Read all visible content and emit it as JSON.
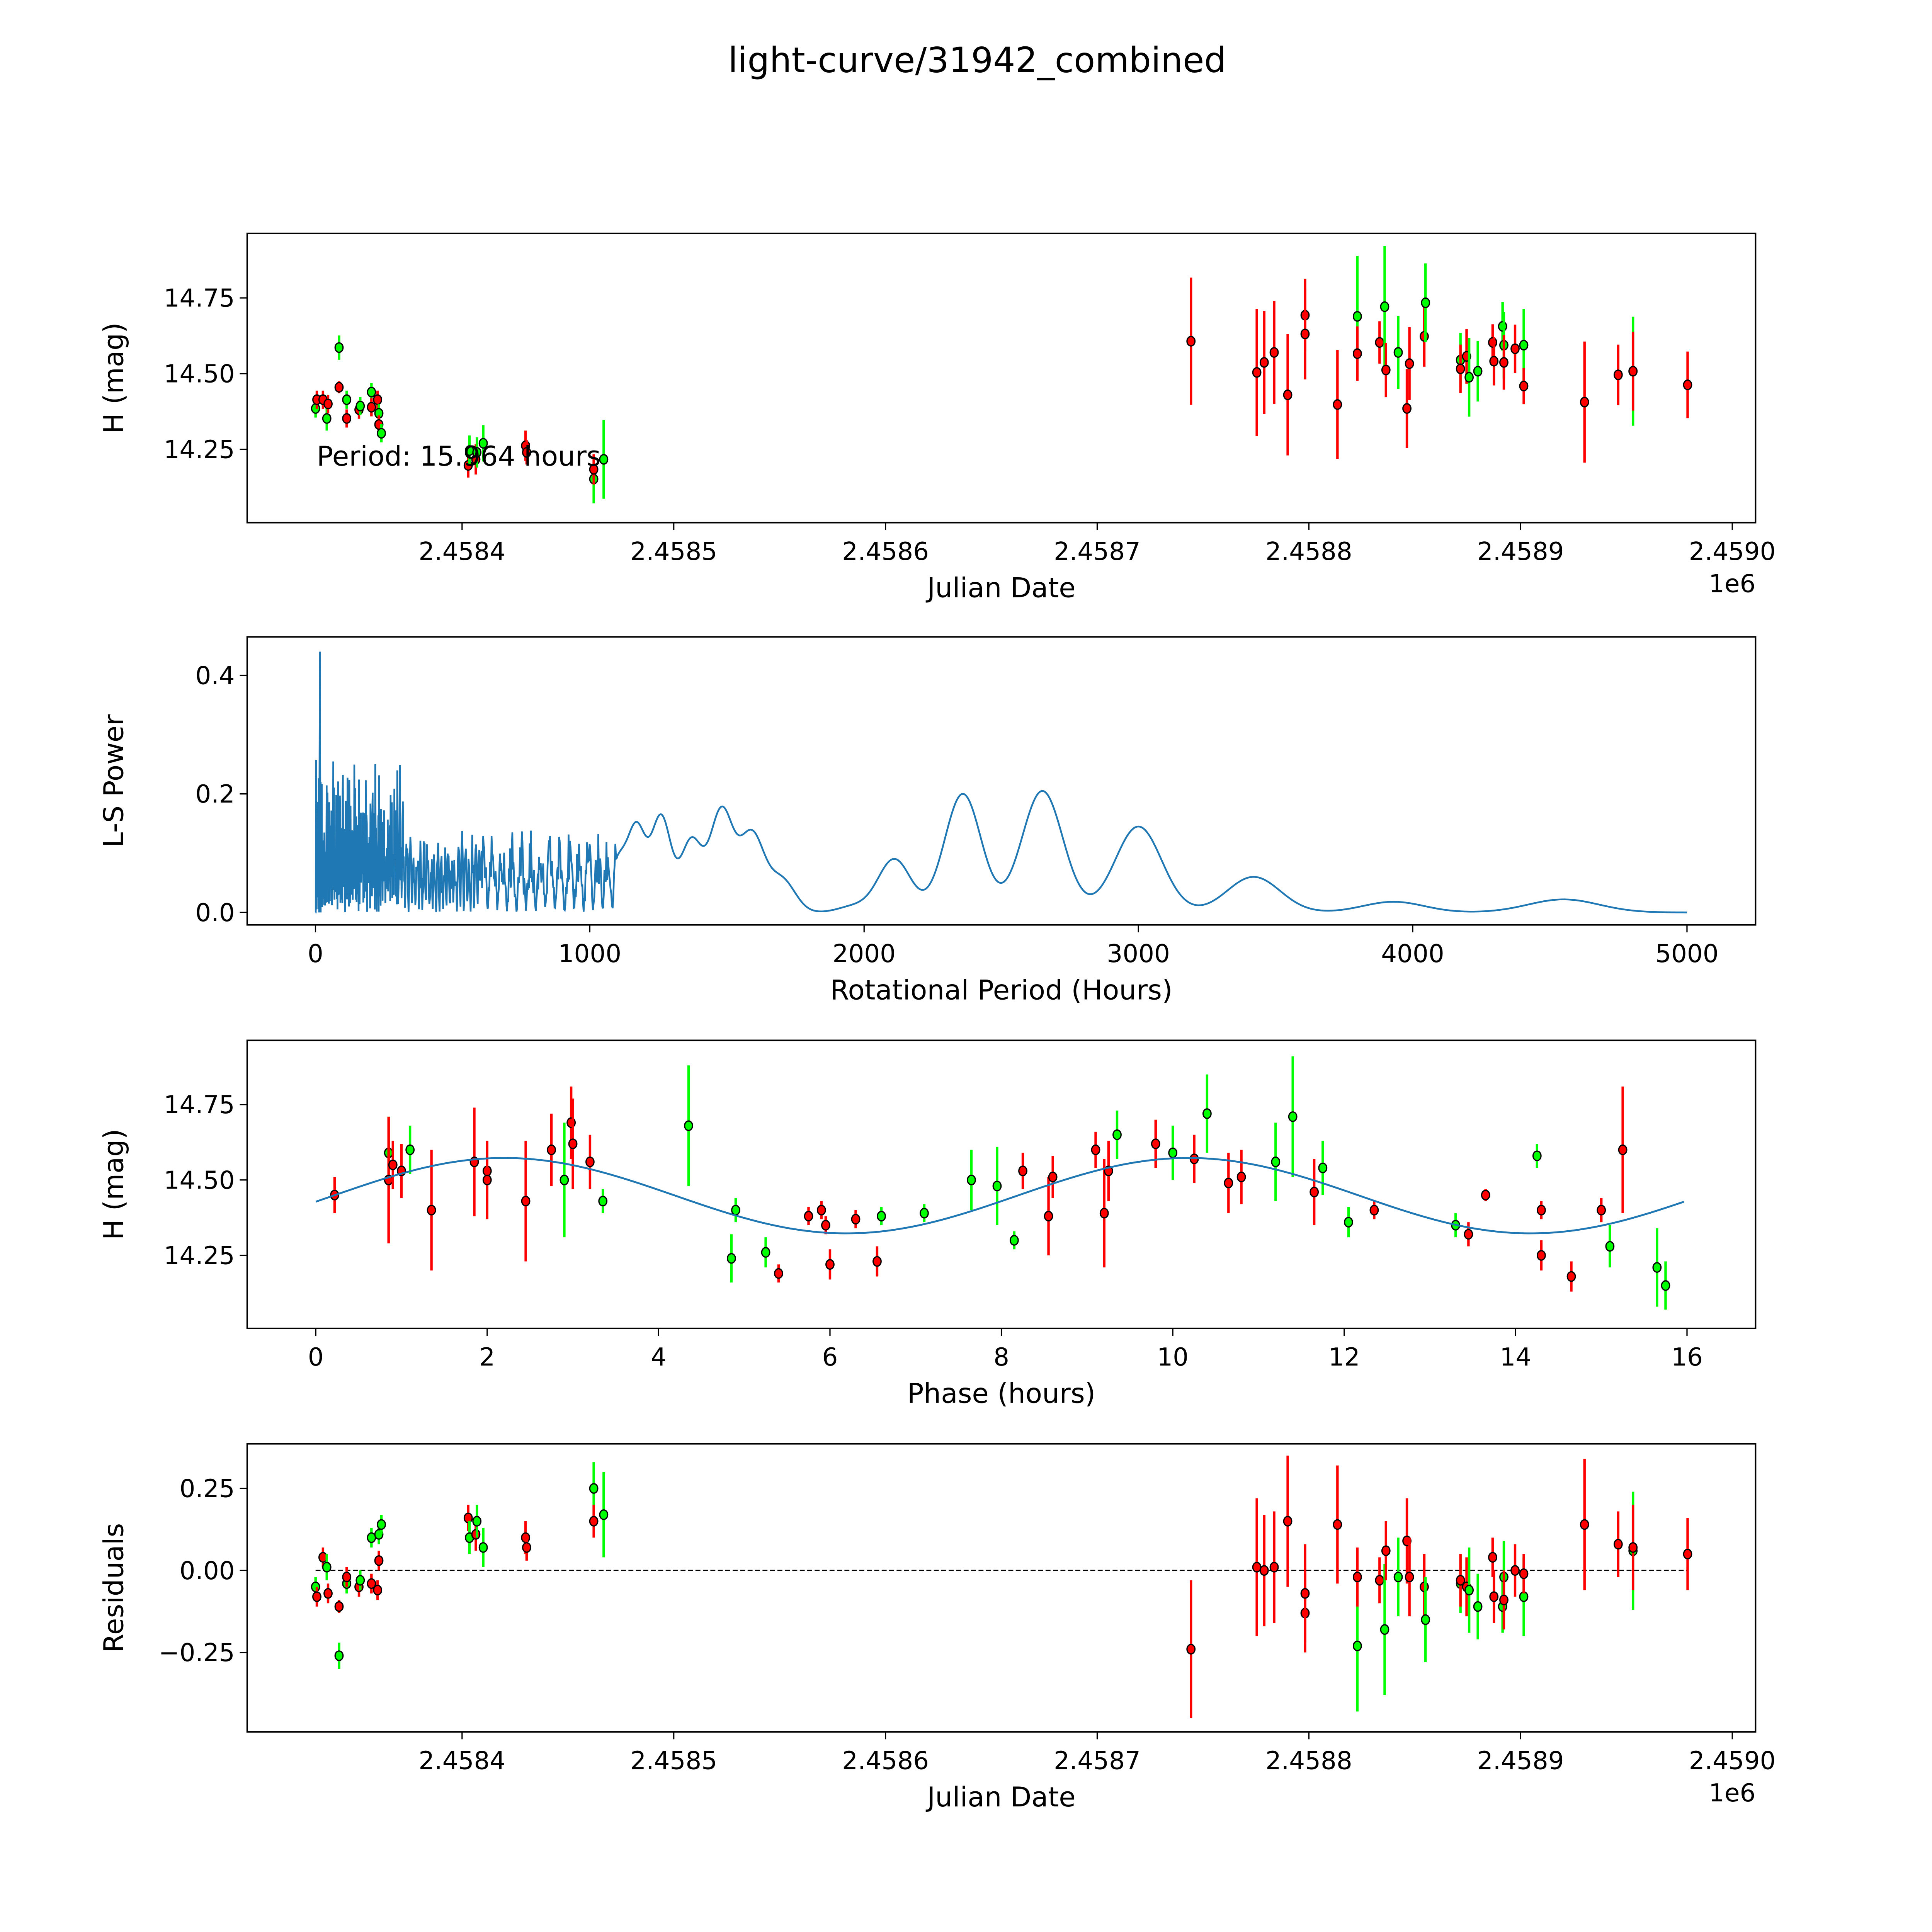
{
  "title": "light-curve/31942_combined",
  "period_annotation": "Period: 15.964 hours",
  "colors": {
    "r_band": "#ff0000",
    "g_band": "#00ff00",
    "model": "#1f77b4",
    "marker_edge": "#000000"
  },
  "chart_data": [
    {
      "id": "lightcurve",
      "type": "scatter",
      "xlabel": "Julian Date",
      "ylabel": "H (mag)",
      "x_offset_label": "1e6",
      "x_ticks": [
        2458400,
        2458500,
        2458600,
        2458700,
        2458800,
        2458900,
        2459000
      ],
      "x_tick_labels": [
        "2.4584",
        "2.4585",
        "2.4586",
        "2.4587",
        "2.4588",
        "2.4589",
        "2.4590"
      ],
      "y_ticks": [
        14.25,
        14.5,
        14.75
      ],
      "y_tick_labels": [
        "14.25",
        "14.50",
        "14.75"
      ],
      "xlim": [
        2458298.5,
        2459011
      ],
      "ylim": [
        14.008,
        14.963
      ],
      "points": [
        {
          "jd": 2458330.8,
          "h": 14.385,
          "err": 0.03,
          "band": "g",
          "res": -0.05
        },
        {
          "jd": 2458331.4,
          "h": 14.414,
          "err": 0.03,
          "band": "r",
          "res": -0.08
        },
        {
          "jd": 2458334.3,
          "h": 14.414,
          "err": 0.03,
          "band": "r",
          "res": 0.04
        },
        {
          "jd": 2458336.1,
          "h": 14.352,
          "err": 0.04,
          "band": "g",
          "res": 0.01
        },
        {
          "jd": 2458336.7,
          "h": 14.4,
          "err": 0.03,
          "band": "r",
          "res": -0.07
        },
        {
          "jd": 2458341.9,
          "h": 14.586,
          "err": 0.04,
          "band": "g",
          "res": -0.26
        },
        {
          "jd": 2458341.9,
          "h": 14.455,
          "err": 0.02,
          "band": "r",
          "res": -0.11
        },
        {
          "jd": 2458345.5,
          "h": 14.414,
          "err": 0.03,
          "band": "g",
          "res": -0.04
        },
        {
          "jd": 2458345.5,
          "h": 14.352,
          "err": 0.03,
          "band": "r",
          "res": -0.02
        },
        {
          "jd": 2458351.3,
          "h": 14.381,
          "err": 0.03,
          "band": "r",
          "res": -0.05
        },
        {
          "jd": 2458351.9,
          "h": 14.393,
          "err": 0.03,
          "band": "g",
          "res": -0.03
        },
        {
          "jd": 2458357.2,
          "h": 14.439,
          "err": 0.03,
          "band": "g",
          "res": 0.1
        },
        {
          "jd": 2458357.2,
          "h": 14.389,
          "err": 0.03,
          "band": "r",
          "res": -0.04
        },
        {
          "jd": 2458360.1,
          "h": 14.414,
          "err": 0.03,
          "band": "r",
          "res": -0.06
        },
        {
          "jd": 2458360.7,
          "h": 14.369,
          "err": 0.03,
          "band": "g",
          "res": 0.11
        },
        {
          "jd": 2458360.7,
          "h": 14.332,
          "err": 0.03,
          "band": "r",
          "res": 0.03
        },
        {
          "jd": 2458361.9,
          "h": 14.303,
          "err": 0.03,
          "band": "g",
          "res": 0.14
        },
        {
          "jd": 2458402.9,
          "h": 14.197,
          "err": 0.04,
          "band": "r",
          "res": 0.16
        },
        {
          "jd": 2458403.5,
          "h": 14.246,
          "err": 0.05,
          "band": "g",
          "res": 0.1
        },
        {
          "jd": 2458406.5,
          "h": 14.217,
          "err": 0.05,
          "band": "r",
          "res": 0.11
        },
        {
          "jd": 2458407.0,
          "h": 14.24,
          "err": 0.05,
          "band": "g",
          "res": 0.15
        },
        {
          "jd": 2458410.0,
          "h": 14.27,
          "err": 0.06,
          "band": "g",
          "res": 0.07
        },
        {
          "jd": 2458430.0,
          "h": 14.262,
          "err": 0.05,
          "band": "r",
          "res": 0.1
        },
        {
          "jd": 2458430.5,
          "h": 14.24,
          "err": 0.04,
          "band": "r",
          "res": 0.07
        },
        {
          "jd": 2458462.2,
          "h": 14.152,
          "err": 0.08,
          "band": "g",
          "res": 0.25
        },
        {
          "jd": 2458462.2,
          "h": 14.184,
          "err": 0.05,
          "band": "r",
          "res": 0.15
        },
        {
          "jd": 2458466.9,
          "h": 14.217,
          "err": 0.13,
          "band": "g",
          "res": 0.17
        },
        {
          "jd": 2458744.3,
          "h": 14.607,
          "err": 0.21,
          "band": "r",
          "res": -0.24
        },
        {
          "jd": 2458775.4,
          "h": 14.504,
          "err": 0.21,
          "band": "r",
          "res": 0.01
        },
        {
          "jd": 2458778.9,
          "h": 14.537,
          "err": 0.17,
          "band": "r",
          "res": 0.0
        },
        {
          "jd": 2458783.6,
          "h": 14.57,
          "err": 0.17,
          "band": "r",
          "res": 0.01
        },
        {
          "jd": 2458790.0,
          "h": 14.43,
          "err": 0.2,
          "band": "r",
          "res": 0.15
        },
        {
          "jd": 2458798.2,
          "h": 14.693,
          "err": 0.12,
          "band": "r",
          "res": -0.13
        },
        {
          "jd": 2458798.2,
          "h": 14.631,
          "err": 0.15,
          "band": "r",
          "res": -0.07
        },
        {
          "jd": 2458813.5,
          "h": 14.398,
          "err": 0.18,
          "band": "r",
          "res": 0.14
        },
        {
          "jd": 2458822.9,
          "h": 14.689,
          "err": 0.2,
          "band": "g",
          "res": -0.23
        },
        {
          "jd": 2458822.9,
          "h": 14.566,
          "err": 0.09,
          "band": "r",
          "res": -0.02
        },
        {
          "jd": 2458833.4,
          "h": 14.603,
          "err": 0.07,
          "band": "r",
          "res": -0.03
        },
        {
          "jd": 2458835.8,
          "h": 14.721,
          "err": 0.2,
          "band": "g",
          "res": -0.18
        },
        {
          "jd": 2458836.4,
          "h": 14.512,
          "err": 0.09,
          "band": "r",
          "res": 0.06
        },
        {
          "jd": 2458842.2,
          "h": 14.57,
          "err": 0.12,
          "band": "g",
          "res": -0.02
        },
        {
          "jd": 2458846.3,
          "h": 14.385,
          "err": 0.13,
          "band": "r",
          "res": 0.09
        },
        {
          "jd": 2458847.5,
          "h": 14.533,
          "err": 0.12,
          "band": "r",
          "res": -0.02
        },
        {
          "jd": 2458854.5,
          "h": 14.623,
          "err": 0.1,
          "band": "r",
          "res": -0.05
        },
        {
          "jd": 2458855.1,
          "h": 14.734,
          "err": 0.13,
          "band": "g",
          "res": -0.15
        },
        {
          "jd": 2458871.6,
          "h": 14.545,
          "err": 0.09,
          "band": "g",
          "res": -0.04
        },
        {
          "jd": 2458871.6,
          "h": 14.516,
          "err": 0.08,
          "band": "r",
          "res": -0.03
        },
        {
          "jd": 2458874.5,
          "h": 14.557,
          "err": 0.09,
          "band": "r",
          "res": -0.05
        },
        {
          "jd": 2458875.7,
          "h": 14.488,
          "err": 0.13,
          "band": "g",
          "res": -0.06
        },
        {
          "jd": 2458879.8,
          "h": 14.508,
          "err": 0.1,
          "band": "g",
          "res": -0.11
        },
        {
          "jd": 2458886.8,
          "h": 14.603,
          "err": 0.06,
          "band": "r",
          "res": 0.04
        },
        {
          "jd": 2458887.4,
          "h": 14.541,
          "err": 0.08,
          "band": "r",
          "res": -0.08
        },
        {
          "jd": 2458891.5,
          "h": 14.656,
          "err": 0.08,
          "band": "g",
          "res": -0.11
        },
        {
          "jd": 2458892.1,
          "h": 14.594,
          "err": 0.11,
          "band": "g",
          "res": -0.02
        },
        {
          "jd": 2458892.1,
          "h": 14.537,
          "err": 0.09,
          "band": "r",
          "res": -0.09
        },
        {
          "jd": 2458897.4,
          "h": 14.582,
          "err": 0.08,
          "band": "r",
          "res": 0.0
        },
        {
          "jd": 2458901.5,
          "h": 14.594,
          "err": 0.12,
          "band": "g",
          "res": -0.08
        },
        {
          "jd": 2458901.5,
          "h": 14.459,
          "err": 0.06,
          "band": "r",
          "res": -0.01
        },
        {
          "jd": 2458930.2,
          "h": 14.406,
          "err": 0.2,
          "band": "r",
          "res": 0.14
        },
        {
          "jd": 2458946.1,
          "h": 14.496,
          "err": 0.1,
          "band": "r",
          "res": 0.08
        },
        {
          "jd": 2458953.1,
          "h": 14.508,
          "err": 0.18,
          "band": "g",
          "res": 0.06
        },
        {
          "jd": 2458953.1,
          "h": 14.508,
          "err": 0.13,
          "band": "r",
          "res": 0.07
        },
        {
          "jd": 2458978.9,
          "h": 14.463,
          "err": 0.11,
          "band": "r",
          "res": 0.05
        }
      ],
      "annotation": "Period: 15.964 hours"
    },
    {
      "id": "periodogram",
      "type": "line",
      "xlabel": "Rotational Period (Hours)",
      "ylabel": "L-S Power",
      "x_ticks": [
        0,
        1000,
        2000,
        3000,
        4000,
        5000
      ],
      "x_tick_labels": [
        "0",
        "1000",
        "2000",
        "3000",
        "4000",
        "5000"
      ],
      "y_ticks": [
        0,
        0.2,
        0.4
      ],
      "y_tick_labels": [
        "0.0",
        "0.2",
        "0.4"
      ],
      "xlim": [
        -249,
        5250
      ],
      "ylim": [
        -0.021,
        0.465
      ],
      "max_peak": {
        "period": 16,
        "power": 0.44
      },
      "peaks": [
        [
          150,
          0.26
        ],
        [
          280,
          0.17
        ],
        [
          520,
          0.17
        ],
        [
          650,
          0.12
        ],
        [
          800,
          0.17
        ],
        [
          850,
          0.17
        ],
        [
          950,
          0.09
        ],
        [
          1100,
          0.08
        ],
        [
          1170,
          0.14
        ],
        [
          1260,
          0.16
        ],
        [
          1370,
          0.12
        ],
        [
          1480,
          0.17
        ],
        [
          1590,
          0.13
        ],
        [
          1700,
          0.055
        ],
        [
          1960,
          0.01
        ],
        [
          2110,
          0.09
        ],
        [
          2360,
          0.2
        ],
        [
          2650,
          0.205
        ],
        [
          3000,
          0.145
        ],
        [
          3420,
          0.06
        ],
        [
          3930,
          0.018
        ],
        [
          4550,
          0.022
        ]
      ]
    },
    {
      "id": "phased",
      "type": "scatter",
      "xlabel": "Phase (hours)",
      "ylabel": "H (mag)",
      "x_ticks": [
        0,
        2,
        4,
        6,
        8,
        10,
        12,
        14,
        16
      ],
      "x_tick_labels": [
        "0",
        "2",
        "4",
        "6",
        "8",
        "10",
        "12",
        "14",
        "16"
      ],
      "y_ticks": [
        14.25,
        14.5,
        14.75
      ],
      "y_tick_labels": [
        "14.25",
        "14.50",
        "14.75"
      ],
      "xlim": [
        -0.8,
        16.8
      ],
      "ylim": [
        14.008,
        14.963
      ],
      "model": {
        "mean": 14.448,
        "amplitude": 0.125,
        "peak_phase": 2.2,
        "half_period": 7.982,
        "range": [
          0,
          15.964
        ]
      },
      "points": [
        [
          0.22,
          14.45,
          0.06,
          "r"
        ],
        [
          0.85,
          14.59,
          0.12,
          "g"
        ],
        [
          0.85,
          14.5,
          0.21,
          "r"
        ],
        [
          0.9,
          14.55,
          0.08,
          "r"
        ],
        [
          1.0,
          14.53,
          0.09,
          "r"
        ],
        [
          1.1,
          14.6,
          0.08,
          "g"
        ],
        [
          1.35,
          14.4,
          0.2,
          "r"
        ],
        [
          1.85,
          14.56,
          0.18,
          "r"
        ],
        [
          2.0,
          14.53,
          0.1,
          "r"
        ],
        [
          2.0,
          14.5,
          0.13,
          "r"
        ],
        [
          2.45,
          14.43,
          0.2,
          "r"
        ],
        [
          2.75,
          14.6,
          0.12,
          "r"
        ],
        [
          2.9,
          14.5,
          0.19,
          "g"
        ],
        [
          2.98,
          14.69,
          0.12,
          "r"
        ],
        [
          3.0,
          14.62,
          0.15,
          "r"
        ],
        [
          3.2,
          14.56,
          0.09,
          "r"
        ],
        [
          3.35,
          14.43,
          0.04,
          "g"
        ],
        [
          4.35,
          14.68,
          0.2,
          "g"
        ],
        [
          4.85,
          14.24,
          0.08,
          "g"
        ],
        [
          4.9,
          14.4,
          0.04,
          "g"
        ],
        [
          5.25,
          14.26,
          0.05,
          "g"
        ],
        [
          5.4,
          14.19,
          0.03,
          "r"
        ],
        [
          5.75,
          14.38,
          0.03,
          "r"
        ],
        [
          5.9,
          14.4,
          0.03,
          "r"
        ],
        [
          5.95,
          14.35,
          0.03,
          "r"
        ],
        [
          6.0,
          14.22,
          0.05,
          "r"
        ],
        [
          6.3,
          14.37,
          0.03,
          "r"
        ],
        [
          6.55,
          14.23,
          0.05,
          "r"
        ],
        [
          6.6,
          14.38,
          0.03,
          "g"
        ],
        [
          7.1,
          14.39,
          0.03,
          "g"
        ],
        [
          7.65,
          14.5,
          0.1,
          "g"
        ],
        [
          7.95,
          14.48,
          0.13,
          "g"
        ],
        [
          8.15,
          14.3,
          0.03,
          "g"
        ],
        [
          8.25,
          14.53,
          0.06,
          "r"
        ],
        [
          8.55,
          14.38,
          0.13,
          "r"
        ],
        [
          8.6,
          14.51,
          0.07,
          "r"
        ],
        [
          9.1,
          14.6,
          0.06,
          "r"
        ],
        [
          9.2,
          14.39,
          0.18,
          "r"
        ],
        [
          9.25,
          14.53,
          0.1,
          "r"
        ],
        [
          9.35,
          14.65,
          0.08,
          "g"
        ],
        [
          9.8,
          14.62,
          0.08,
          "r"
        ],
        [
          10.0,
          14.59,
          0.09,
          "g"
        ],
        [
          10.25,
          14.57,
          0.08,
          "r"
        ],
        [
          10.4,
          14.72,
          0.13,
          "g"
        ],
        [
          10.65,
          14.49,
          0.1,
          "r"
        ],
        [
          10.8,
          14.51,
          0.09,
          "r"
        ],
        [
          11.2,
          14.56,
          0.13,
          "g"
        ],
        [
          11.4,
          14.71,
          0.2,
          "g"
        ],
        [
          11.65,
          14.46,
          0.11,
          "r"
        ],
        [
          11.75,
          14.54,
          0.09,
          "g"
        ],
        [
          12.05,
          14.36,
          0.05,
          "g"
        ],
        [
          12.35,
          14.4,
          0.03,
          "r"
        ],
        [
          13.3,
          14.35,
          0.04,
          "g"
        ],
        [
          13.45,
          14.32,
          0.04,
          "r"
        ],
        [
          13.65,
          14.45,
          0.02,
          "r"
        ],
        [
          14.25,
          14.58,
          0.04,
          "g"
        ],
        [
          14.3,
          14.4,
          0.03,
          "r"
        ],
        [
          14.3,
          14.25,
          0.05,
          "r"
        ],
        [
          14.65,
          14.18,
          0.05,
          "r"
        ],
        [
          15.0,
          14.4,
          0.04,
          "r"
        ],
        [
          15.1,
          14.28,
          0.07,
          "g"
        ],
        [
          15.25,
          14.6,
          0.21,
          "r"
        ],
        [
          15.65,
          14.21,
          0.13,
          "g"
        ],
        [
          15.75,
          14.15,
          0.08,
          "g"
        ]
      ]
    },
    {
      "id": "residuals",
      "type": "scatter",
      "xlabel": "Julian Date",
      "ylabel": "Residuals",
      "x_offset_label": "1e6",
      "x_ticks": [
        2458400,
        2458500,
        2458600,
        2458700,
        2458800,
        2458900,
        2459000
      ],
      "x_tick_labels": [
        "2.4584",
        "2.4585",
        "2.4586",
        "2.4587",
        "2.4588",
        "2.4589",
        "2.4590"
      ],
      "y_ticks": [
        -0.25,
        0,
        0.25
      ],
      "y_tick_labels": [
        "−0.25",
        "0.00",
        "0.25"
      ],
      "xlim": [
        2458298.5,
        2459011
      ],
      "ylim": [
        -0.492,
        0.386
      ]
    }
  ]
}
